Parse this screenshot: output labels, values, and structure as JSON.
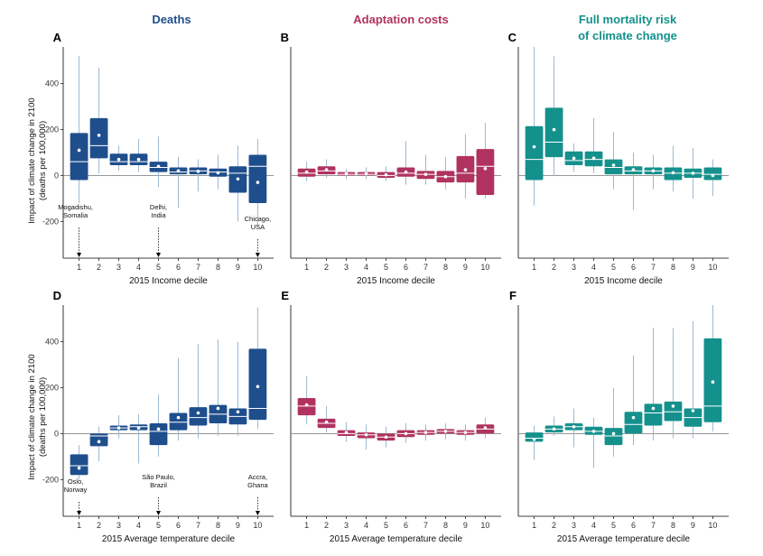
{
  "column_titles": {
    "deaths": "Deaths",
    "adaptation": "Adaptation costs",
    "full_line1": "Full mortality risk",
    "full_line2": "of climate change"
  },
  "colors": {
    "deaths": "#1f4e8c",
    "adaptation": "#b0335f",
    "full": "#14918c",
    "whisker": "#9cb8d0"
  },
  "ylabel_line1": "Impact of climate change in 2100",
  "ylabel_line2": "(deaths per 100,000)",
  "chart_data": [
    {
      "panel": "A",
      "type": "box",
      "color_key": "deaths",
      "xlabel": "2015 Income decile",
      "categories": [
        "1",
        "2",
        "3",
        "4",
        "5",
        "6",
        "7",
        "8",
        "9",
        "10"
      ],
      "yticks": [
        -200,
        0,
        200,
        400
      ],
      "ylim": [
        -360,
        560
      ],
      "boxes": [
        {
          "q1": -20,
          "median": 60,
          "q3": 185,
          "mean": 110,
          "lo": -120,
          "hi": 520
        },
        {
          "q1": 75,
          "median": 130,
          "q3": 250,
          "mean": 175,
          "lo": 10,
          "hi": 470
        },
        {
          "q1": 45,
          "median": 60,
          "q3": 95,
          "mean": 70,
          "lo": 20,
          "hi": 130
        },
        {
          "q1": 45,
          "median": 60,
          "q3": 95,
          "mean": 70,
          "lo": 15,
          "hi": 160
        },
        {
          "q1": 15,
          "median": 35,
          "q3": 60,
          "mean": 40,
          "lo": -50,
          "hi": 170
        },
        {
          "q1": 5,
          "median": 15,
          "q3": 35,
          "mean": 20,
          "lo": -140,
          "hi": 80
        },
        {
          "q1": 5,
          "median": 20,
          "q3": 35,
          "mean": 18,
          "lo": -70,
          "hi": 70
        },
        {
          "q1": -5,
          "median": 15,
          "q3": 30,
          "mean": 12,
          "lo": -60,
          "hi": 90
        },
        {
          "q1": -75,
          "median": 10,
          "q3": 40,
          "mean": -15,
          "lo": -200,
          "hi": 130
        },
        {
          "q1": -120,
          "median": 40,
          "q3": 90,
          "mean": -30,
          "lo": -220,
          "hi": 160
        }
      ],
      "annotations": [
        {
          "text_lines": [
            "Mogadishu,",
            "Somalia"
          ],
          "decile": 1,
          "y": -180
        },
        {
          "text_lines": [
            "Delhi,",
            "India"
          ],
          "decile": 5,
          "y": -180
        },
        {
          "text_lines": [
            "Chicago,",
            "USA"
          ],
          "decile": 10,
          "y": -230
        }
      ]
    },
    {
      "panel": "B",
      "type": "box",
      "color_key": "adaptation",
      "xlabel": "2015 Income decile",
      "categories": [
        "1",
        "2",
        "3",
        "4",
        "5",
        "6",
        "7",
        "8",
        "9",
        "10"
      ],
      "yticks": [],
      "ylim": [
        -360,
        560
      ],
      "boxes": [
        {
          "q1": -5,
          "median": 10,
          "q3": 30,
          "mean": 15,
          "lo": -25,
          "hi": 60
        },
        {
          "q1": 5,
          "median": 20,
          "q3": 40,
          "mean": 25,
          "lo": -10,
          "hi": 70
        },
        {
          "q1": 0,
          "median": 5,
          "q3": 15,
          "mean": 8,
          "lo": -15,
          "hi": 30
        },
        {
          "q1": 0,
          "median": 5,
          "q3": 15,
          "mean": 8,
          "lo": -15,
          "hi": 35
        },
        {
          "q1": -10,
          "median": 0,
          "q3": 15,
          "mean": 3,
          "lo": -25,
          "hi": 40
        },
        {
          "q1": -5,
          "median": 10,
          "q3": 35,
          "mean": 15,
          "lo": -40,
          "hi": 150
        },
        {
          "q1": -15,
          "median": 5,
          "q3": 20,
          "mean": 5,
          "lo": -40,
          "hi": 90
        },
        {
          "q1": -30,
          "median": -5,
          "q3": 20,
          "mean": -5,
          "lo": -60,
          "hi": 80
        },
        {
          "q1": -30,
          "median": 10,
          "q3": 85,
          "mean": 25,
          "lo": -100,
          "hi": 180
        },
        {
          "q1": -85,
          "median": 40,
          "q3": 115,
          "mean": 30,
          "lo": -100,
          "hi": 230
        }
      ],
      "annotations": []
    },
    {
      "panel": "C",
      "type": "box",
      "color_key": "full",
      "xlabel": "2015 Income decile",
      "categories": [
        "1",
        "2",
        "3",
        "4",
        "5",
        "6",
        "7",
        "8",
        "9",
        "10"
      ],
      "yticks": [],
      "ylim": [
        -360,
        560
      ],
      "boxes": [
        {
          "q1": -20,
          "median": 70,
          "q3": 215,
          "mean": 125,
          "lo": -130,
          "hi": 560
        },
        {
          "q1": 80,
          "median": 145,
          "q3": 295,
          "mean": 200,
          "lo": 0,
          "hi": 520
        },
        {
          "q1": 45,
          "median": 65,
          "q3": 105,
          "mean": 75,
          "lo": 15,
          "hi": 140
        },
        {
          "q1": 40,
          "median": 70,
          "q3": 105,
          "mean": 75,
          "lo": 10,
          "hi": 250
        },
        {
          "q1": 5,
          "median": 35,
          "q3": 70,
          "mean": 45,
          "lo": -60,
          "hi": 190
        },
        {
          "q1": 5,
          "median": 20,
          "q3": 40,
          "mean": 25,
          "lo": -150,
          "hi": 100
        },
        {
          "q1": 5,
          "median": 20,
          "q3": 35,
          "mean": 20,
          "lo": -60,
          "hi": 90
        },
        {
          "q1": -20,
          "median": 10,
          "q3": 35,
          "mean": 12,
          "lo": -70,
          "hi": 130
        },
        {
          "q1": -10,
          "median": 10,
          "q3": 30,
          "mean": 10,
          "lo": -100,
          "hi": 120
        },
        {
          "q1": -20,
          "median": 5,
          "q3": 35,
          "mean": 0,
          "lo": -90,
          "hi": 70
        }
      ],
      "annotations": []
    },
    {
      "panel": "D",
      "type": "box",
      "color_key": "deaths",
      "xlabel": "2015 Average temperature decile",
      "categories": [
        "1",
        "2",
        "3",
        "4",
        "5",
        "6",
        "7",
        "8",
        "9",
        "10"
      ],
      "yticks": [
        -200,
        0,
        200,
        400
      ],
      "ylim": [
        -360,
        560
      ],
      "boxes": [
        {
          "q1": -180,
          "median": -140,
          "q3": -90,
          "mean": -150,
          "lo": -200,
          "hi": -50
        },
        {
          "q1": -55,
          "median": -10,
          "q3": 0,
          "mean": -35,
          "lo": -120,
          "hi": 30
        },
        {
          "q1": 15,
          "median": 25,
          "q3": 35,
          "mean": 25,
          "lo": -20,
          "hi": 80
        },
        {
          "q1": 15,
          "median": 30,
          "q3": 40,
          "mean": 25,
          "lo": -130,
          "hi": 85
        },
        {
          "q1": -50,
          "median": 10,
          "q3": 45,
          "mean": 20,
          "lo": -100,
          "hi": 170
        },
        {
          "q1": 15,
          "median": 50,
          "q3": 90,
          "mean": 70,
          "lo": -30,
          "hi": 330
        },
        {
          "q1": 35,
          "median": 70,
          "q3": 115,
          "mean": 90,
          "lo": -20,
          "hi": 390
        },
        {
          "q1": 45,
          "median": 85,
          "q3": 125,
          "mean": 110,
          "lo": -10,
          "hi": 410
        },
        {
          "q1": 40,
          "median": 75,
          "q3": 110,
          "mean": 95,
          "lo": -10,
          "hi": 400
        },
        {
          "q1": 60,
          "median": 110,
          "q3": 370,
          "mean": 205,
          "lo": 20,
          "hi": 550
        }
      ],
      "annotations": [
        {
          "text_lines": [
            "Oslo,",
            "Norway"
          ],
          "decile": 1,
          "y": -250
        },
        {
          "text_lines": [
            "São Paulo,",
            "Brazil"
          ],
          "decile": 5,
          "y": -230
        },
        {
          "text_lines": [
            "Accra,",
            "Ghana"
          ],
          "decile": 10,
          "y": -230
        }
      ]
    },
    {
      "panel": "E",
      "type": "box",
      "color_key": "adaptation",
      "xlabel": "2015 Average temperature decile",
      "categories": [
        "1",
        "2",
        "3",
        "4",
        "5",
        "6",
        "7",
        "8",
        "9",
        "10"
      ],
      "yticks": [],
      "ylim": [
        -360,
        560
      ],
      "boxes": [
        {
          "q1": 80,
          "median": 120,
          "q3": 155,
          "mean": 125,
          "lo": 40,
          "hi": 250
        },
        {
          "q1": 25,
          "median": 45,
          "q3": 65,
          "mean": 50,
          "lo": 5,
          "hi": 120
        },
        {
          "q1": -10,
          "median": 0,
          "q3": 15,
          "mean": 5,
          "lo": -35,
          "hi": 50
        },
        {
          "q1": -20,
          "median": -5,
          "q3": 5,
          "mean": -5,
          "lo": -70,
          "hi": 40
        },
        {
          "q1": -30,
          "median": -15,
          "q3": 0,
          "mean": -15,
          "lo": -60,
          "hi": 30
        },
        {
          "q1": -15,
          "median": 0,
          "q3": 15,
          "mean": 0,
          "lo": -40,
          "hi": 45
        },
        {
          "q1": -5,
          "median": 5,
          "q3": 15,
          "mean": 5,
          "lo": -30,
          "hi": 40
        },
        {
          "q1": 0,
          "median": 10,
          "q3": 20,
          "mean": 10,
          "lo": -25,
          "hi": 45
        },
        {
          "q1": -5,
          "median": 5,
          "q3": 15,
          "mean": 5,
          "lo": -30,
          "hi": 40
        },
        {
          "q1": 0,
          "median": 20,
          "q3": 40,
          "mean": 25,
          "lo": -20,
          "hi": 70
        }
      ],
      "annotations": []
    },
    {
      "panel": "F",
      "type": "box",
      "color_key": "full",
      "xlabel": "2015 Average temperature decile",
      "categories": [
        "1",
        "2",
        "3",
        "4",
        "5",
        "6",
        "7",
        "8",
        "9",
        "10"
      ],
      "yticks": [],
      "ylim": [
        -360,
        560
      ],
      "boxes": [
        {
          "q1": -35,
          "median": -20,
          "q3": 5,
          "mean": -25,
          "lo": -115,
          "hi": 35
        },
        {
          "q1": 5,
          "median": 20,
          "q3": 35,
          "mean": 20,
          "lo": -10,
          "hi": 75
        },
        {
          "q1": 15,
          "median": 30,
          "q3": 45,
          "mean": 30,
          "lo": -60,
          "hi": 110
        },
        {
          "q1": -5,
          "median": 10,
          "q3": 30,
          "mean": 10,
          "lo": -150,
          "hi": 70
        },
        {
          "q1": -50,
          "median": -10,
          "q3": 25,
          "mean": 0,
          "lo": -100,
          "hi": 200
        },
        {
          "q1": 0,
          "median": 40,
          "q3": 95,
          "mean": 70,
          "lo": -50,
          "hi": 340
        },
        {
          "q1": 35,
          "median": 90,
          "q3": 130,
          "mean": 110,
          "lo": -30,
          "hi": 460
        },
        {
          "q1": 55,
          "median": 95,
          "q3": 140,
          "mean": 120,
          "lo": -20,
          "hi": 460
        },
        {
          "q1": 30,
          "median": 70,
          "q3": 110,
          "mean": 100,
          "lo": -20,
          "hi": 490
        },
        {
          "q1": 50,
          "median": 120,
          "q3": 415,
          "mean": 225,
          "lo": 10,
          "hi": 560
        }
      ],
      "annotations": []
    }
  ]
}
